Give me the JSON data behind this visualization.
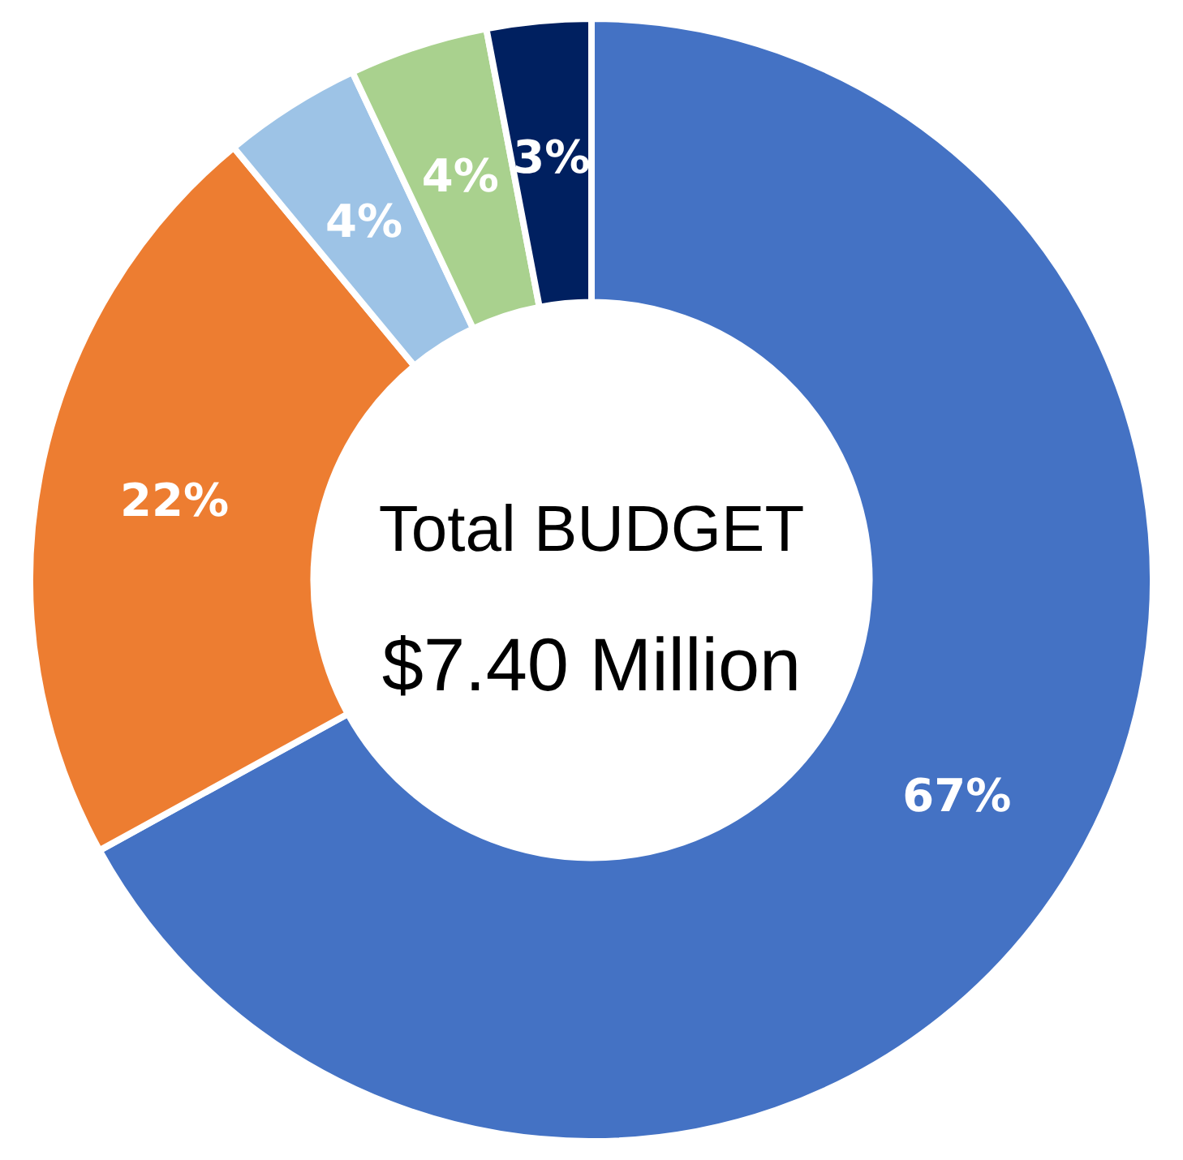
{
  "chart_data": {
    "type": "donut",
    "title": "Total BUDGET",
    "subtitle": "$7.40 Million",
    "categories": [
      null,
      null,
      null,
      null,
      null
    ],
    "values": [
      67,
      22,
      4,
      4,
      3
    ],
    "value_labels": [
      "67%",
      "22%",
      "4%",
      "4%",
      "3%"
    ],
    "colors": [
      "#4472c4",
      "#ed7d31",
      "#9dc3e6",
      "#a9d18e",
      "#002060"
    ]
  }
}
